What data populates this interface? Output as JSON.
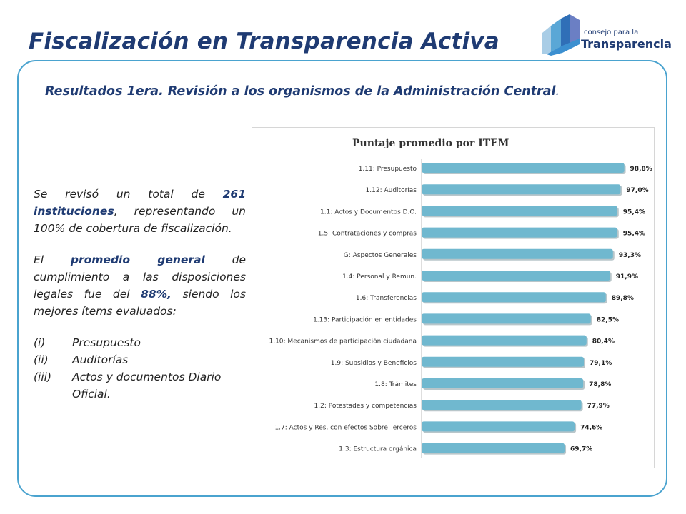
{
  "slide": {
    "title": "Fiscalización en Transparencia Activa",
    "subtitle_main": "Resultados  1era. Revisión a los organismos de la Administración Central",
    "subtitle_end": "."
  },
  "logo": {
    "small": "consejo para la",
    "big": "Transparencia"
  },
  "text": {
    "p1": {
      "a": "Se revisó un total de ",
      "count": "261 instituciones",
      "b": ", representando un 100% de cobertura de fiscalización."
    },
    "p2": {
      "a": "El ",
      "promedio": "promedio general",
      "b": " de cumplimiento a las disposiciones legales fue del ",
      "pct": "88%,",
      "c": " siendo los mejores ítems evaluados:"
    },
    "items": [
      {
        "num": "(i)",
        "text": "Presupuesto"
      },
      {
        "num": "(ii)",
        "text": "Auditorías"
      },
      {
        "num": "(iii)",
        "text": "Actos y documentos Diario Oficial."
      }
    ]
  },
  "colors": {
    "title": "#1f3b73",
    "frame": "#4aa3cf",
    "bar": "#70b8cf"
  },
  "chart_data": {
    "type": "bar",
    "orientation": "horizontal",
    "title": "Puntaje promedio por ITEM",
    "categories": [
      "1.11: Presupuesto",
      "1.12: Auditorías",
      "1.1: Actos y Documentos D.O.",
      "1.5: Contrataciones y compras",
      "G: Aspectos Generales",
      "1.4: Personal y Remun.",
      "1.6: Transferencias",
      "1.13: Participación en entidades",
      "1.10: Mecanismos de participación ciudadana",
      "1.9: Subsidios y Beneficios",
      "1.8: Trámites",
      "1.2: Potestades y competencias",
      "1.7: Actos y Res. con efectos Sobre Terceros",
      "1.3: Estructura orgánica"
    ],
    "values": [
      98.8,
      97.0,
      95.4,
      95.4,
      93.3,
      91.9,
      89.8,
      82.5,
      80.4,
      79.1,
      78.8,
      77.9,
      74.6,
      69.7
    ],
    "labels": [
      "98,8%",
      "97,0%",
      "95,4%",
      "95,4%",
      "93,3%",
      "91,9%",
      "89,8%",
      "82,5%",
      "80,4%",
      "79,1%",
      "78,8%",
      "77,9%",
      "74,6%",
      "69,7%"
    ],
    "xlim": [
      0,
      100
    ]
  }
}
